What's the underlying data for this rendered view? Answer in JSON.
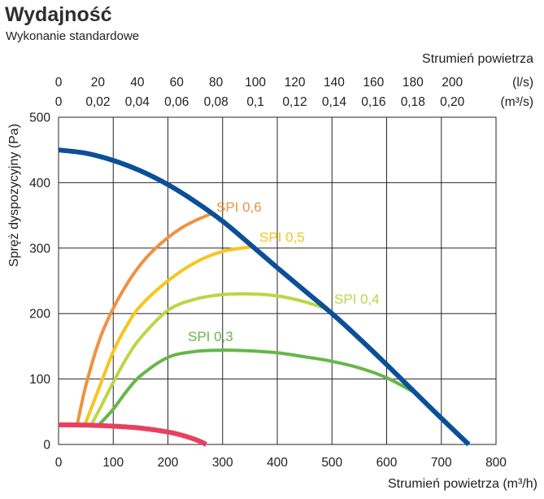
{
  "chart_data": {
    "type": "line",
    "title": "Wydajność",
    "subtitle": "Wykonanie standardowe",
    "xlabel": "Strumień powietrza (m³/h)",
    "ylabel": "Spręż dyspozycyjny (Pa)",
    "xlim": [
      0,
      800
    ],
    "ylim": [
      0,
      500
    ],
    "grid": true,
    "x_ticks": [
      0,
      100,
      200,
      300,
      400,
      500,
      600,
      700,
      800
    ],
    "x_tick_labels": [
      "0",
      "100",
      "200",
      "300",
      "400",
      "500",
      "600",
      "700",
      "800"
    ],
    "y_ticks": [
      0,
      100,
      200,
      300,
      400,
      500
    ],
    "y_tick_labels": [
      "0",
      "100",
      "200",
      "300",
      "400",
      "500"
    ],
    "top_axis": {
      "title": "Strumień powietrza",
      "rows": [
        {
          "unit_label": "(l/s)",
          "m3h_per_unit": 3.6,
          "ticks": [
            0,
            20,
            40,
            60,
            80,
            100,
            120,
            140,
            160,
            180,
            200
          ],
          "tick_labels": [
            "0",
            "20",
            "40",
            "60",
            "80",
            "100",
            "120",
            "140",
            "160",
            "180",
            "200"
          ]
        },
        {
          "unit_label": "(m³/s)",
          "m3h_per_unit": 3600,
          "ticks": [
            0,
            0.02,
            0.04,
            0.06,
            0.08,
            0.1,
            0.12,
            0.14,
            0.16,
            0.18,
            0.2
          ],
          "tick_labels": [
            "0",
            "0,02",
            "0,04",
            "0,06",
            "0,08",
            "0,1",
            "0,12",
            "0,14",
            "0,16",
            "0,18",
            "0,20"
          ]
        }
      ]
    },
    "series": [
      {
        "label": "SPI 0,3",
        "color": "#66b64a",
        "x": [
          74,
          100,
          125,
          150,
          200,
          250,
          300,
          350,
          400,
          450,
          500,
          550,
          600,
          654
        ],
        "y": [
          30,
          54,
          82,
          105,
          133,
          142,
          144,
          143,
          140,
          134,
          127,
          117,
          102,
          78
        ]
      },
      {
        "label": "SPI 0,4",
        "color": "#bdd546",
        "x": [
          60,
          80,
          100,
          125,
          150,
          200,
          250,
          300,
          350,
          400,
          450,
          490
        ],
        "y": [
          30,
          62,
          95,
          133,
          163,
          205,
          222,
          229,
          230,
          227,
          218,
          207
        ]
      },
      {
        "label": "SPI 0,5",
        "color": "#f7c520",
        "x": [
          48,
          75,
          100,
          125,
          150,
          200,
          250,
          300,
          354
        ],
        "y": [
          30,
          88,
          142,
          182,
          212,
          250,
          278,
          295,
          302
        ]
      },
      {
        "label": "SPI 0,6",
        "color": "#ee9240",
        "x": [
          34,
          50,
          75,
          100,
          125,
          150,
          175,
          200,
          225,
          250,
          280
        ],
        "y": [
          30,
          90,
          160,
          208,
          245,
          275,
          298,
          316,
          331,
          342,
          353
        ]
      },
      {
        "color": "#0b4f99",
        "x": [
          0,
          50,
          100,
          150,
          200,
          250,
          300,
          350,
          400,
          450,
          500,
          550,
          600,
          650,
          700,
          750
        ],
        "y": [
          450,
          445,
          434,
          418,
          397,
          371,
          341,
          306,
          270,
          235,
          200,
          162,
          122,
          81,
          40,
          0
        ]
      },
      {
        "color": "#e6415f",
        "x": [
          0,
          50,
          100,
          150,
          200,
          230,
          255,
          270
        ],
        "y": [
          30,
          29.5,
          28,
          25,
          19,
          13,
          6,
          0
        ]
      }
    ]
  }
}
